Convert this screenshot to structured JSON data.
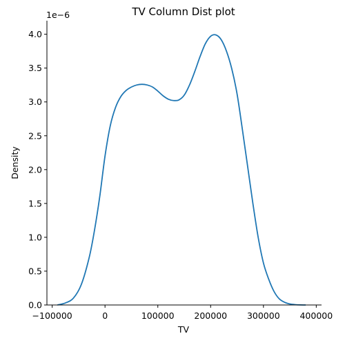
{
  "chart_data": {
    "type": "line",
    "title": "TV Column Dist plot",
    "xlabel": "TV",
    "ylabel": "Density",
    "y_offset_text": "1e−6",
    "xlim": [
      -110000,
      410000
    ],
    "ylim": [
      0,
      4.2
    ],
    "x_ticks": [
      -100000,
      0,
      100000,
      200000,
      300000,
      400000
    ],
    "x_tick_labels": [
      "−100000",
      "0",
      "100000",
      "200000",
      "300000",
      "400000"
    ],
    "y_ticks": [
      0,
      0.5,
      1.0,
      1.5,
      2.0,
      2.5,
      3.0,
      3.5,
      4.0
    ],
    "y_tick_labels": [
      "0.0",
      "0.5",
      "1.0",
      "1.5",
      "2.0",
      "2.5",
      "3.0",
      "3.5",
      "4.0"
    ],
    "grid": false,
    "series": [
      {
        "color": "#1f77b4",
        "x": [
          -90000,
          -75000,
          -60000,
          -45000,
          -30000,
          -20000,
          -10000,
          0,
          10000,
          20000,
          30000,
          40000,
          50000,
          60000,
          70000,
          80000,
          90000,
          100000,
          110000,
          120000,
          130000,
          140000,
          150000,
          160000,
          170000,
          180000,
          190000,
          200000,
          210000,
          220000,
          230000,
          240000,
          250000,
          260000,
          270000,
          280000,
          290000,
          300000,
          310000,
          320000,
          330000,
          340000,
          350000,
          360000,
          370000,
          380000
        ],
        "y": [
          0.0,
          0.03,
          0.1,
          0.3,
          0.7,
          1.1,
          1.6,
          2.2,
          2.65,
          2.92,
          3.08,
          3.17,
          3.22,
          3.25,
          3.26,
          3.25,
          3.22,
          3.16,
          3.09,
          3.04,
          3.02,
          3.03,
          3.1,
          3.25,
          3.45,
          3.67,
          3.86,
          3.97,
          3.99,
          3.92,
          3.75,
          3.49,
          3.12,
          2.6,
          2.05,
          1.5,
          1.0,
          0.62,
          0.38,
          0.2,
          0.09,
          0.04,
          0.015,
          0.005,
          0.001,
          0.0
        ]
      }
    ]
  }
}
